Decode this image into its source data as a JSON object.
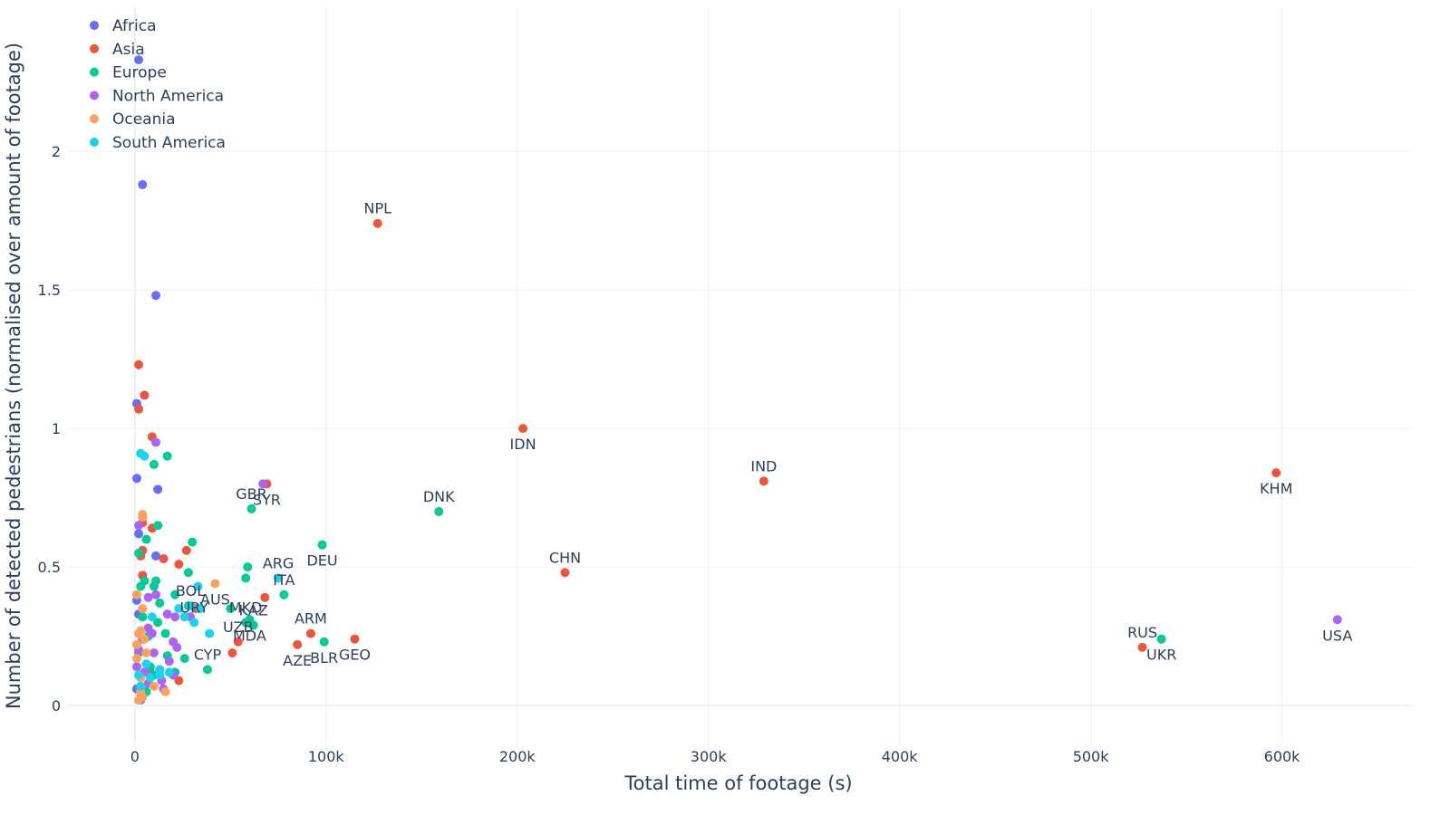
{
  "chart_data": {
    "type": "scatter",
    "title": "",
    "xlabel": "Total time of footage (s)",
    "ylabel": "Number of detected pedestrians (normalised over amount of footage)",
    "xlim": [
      -35000,
      668000
    ],
    "ylim": [
      -0.14,
      2.52
    ],
    "x_ticks": [
      {
        "v": 0,
        "label": "0"
      },
      {
        "v": 100000,
        "label": "100k"
      },
      {
        "v": 200000,
        "label": "200k"
      },
      {
        "v": 300000,
        "label": "300k"
      },
      {
        "v": 400000,
        "label": "400k"
      },
      {
        "v": 500000,
        "label": "500k"
      },
      {
        "v": 600000,
        "label": "600k"
      }
    ],
    "y_ticks": [
      {
        "v": 0,
        "label": "0"
      },
      {
        "v": 0.5,
        "label": "0.5"
      },
      {
        "v": 1,
        "label": "1"
      },
      {
        "v": 1.5,
        "label": "1.5"
      },
      {
        "v": 2,
        "label": "2"
      }
    ],
    "grid": true,
    "legend_position": "top-left",
    "series": [
      {
        "name": "Africa",
        "color": "#636efa",
        "points": [
          {
            "x": 2000,
            "y": 2.33
          },
          {
            "x": 4000,
            "y": 1.88
          },
          {
            "x": 11000,
            "y": 1.48
          },
          {
            "x": 1000,
            "y": 1.09
          },
          {
            "x": 1000,
            "y": 0.82
          },
          {
            "x": 12000,
            "y": 0.78
          },
          {
            "x": 2000,
            "y": 0.62
          },
          {
            "x": 11000,
            "y": 0.54
          },
          {
            "x": 1000,
            "y": 0.38
          },
          {
            "x": 2000,
            "y": 0.33
          },
          {
            "x": 1000,
            "y": 0.06
          },
          {
            "x": 3000,
            "y": 0.02
          }
        ]
      },
      {
        "name": "Asia",
        "color": "#ef553b",
        "points": [
          {
            "x": 127000,
            "y": 1.74,
            "label": "NPL",
            "lpos": "above"
          },
          {
            "x": 203000,
            "y": 1.0,
            "label": "IDN",
            "lpos": "below"
          },
          {
            "x": 329000,
            "y": 0.81,
            "label": "IND",
            "lpos": "above"
          },
          {
            "x": 597000,
            "y": 0.84,
            "label": "KHM",
            "lpos": "below"
          },
          {
            "x": 225000,
            "y": 0.48,
            "label": "CHN",
            "lpos": "above"
          },
          {
            "x": 527000,
            "y": 0.21,
            "label": "RUS",
            "lpos": "above"
          },
          {
            "x": 69000,
            "y": 0.8,
            "label": "SYR",
            "lpos": "below"
          },
          {
            "x": 92000,
            "y": 0.26,
            "label": "ARM",
            "lpos": "above"
          },
          {
            "x": 85000,
            "y": 0.22,
            "label": "AZE",
            "lpos": "below"
          },
          {
            "x": 115000,
            "y": 0.24,
            "label": "GEO",
            "lpos": "below"
          },
          {
            "x": 54000,
            "y": 0.23,
            "label": "UZB",
            "lpos": "above"
          },
          {
            "x": 2000,
            "y": 1.23
          },
          {
            "x": 2000,
            "y": 1.07
          },
          {
            "x": 5000,
            "y": 1.12
          },
          {
            "x": 9000,
            "y": 0.97
          },
          {
            "x": 4000,
            "y": 0.66
          },
          {
            "x": 9000,
            "y": 0.64
          },
          {
            "x": 4000,
            "y": 0.56
          },
          {
            "x": 3000,
            "y": 0.54
          },
          {
            "x": 27000,
            "y": 0.56
          },
          {
            "x": 15000,
            "y": 0.53
          },
          {
            "x": 23000,
            "y": 0.51
          },
          {
            "x": 4000,
            "y": 0.47
          },
          {
            "x": 68000,
            "y": 0.39
          },
          {
            "x": 32000,
            "y": 0.35
          },
          {
            "x": 51000,
            "y": 0.19
          },
          {
            "x": 23000,
            "y": 0.09
          },
          {
            "x": 8000,
            "y": 0.12
          }
        ]
      },
      {
        "name": "Europe",
        "color": "#00cc96",
        "points": [
          {
            "x": 159000,
            "y": 0.7,
            "label": "DNK",
            "lpos": "above"
          },
          {
            "x": 98000,
            "y": 0.58,
            "label": "DEU",
            "lpos": "below"
          },
          {
            "x": 78000,
            "y": 0.4,
            "label": "ITA",
            "lpos": "above"
          },
          {
            "x": 61000,
            "y": 0.71,
            "label": "GBR",
            "lpos": "above"
          },
          {
            "x": 537000,
            "y": 0.24,
            "label": "UKR",
            "lpos": "below"
          },
          {
            "x": 99000,
            "y": 0.23,
            "label": "BLR",
            "lpos": "below"
          },
          {
            "x": 58000,
            "y": 0.3,
            "label": "MKD",
            "lpos": "above"
          },
          {
            "x": 62000,
            "y": 0.29,
            "label": "KAZ",
            "lpos": "above"
          },
          {
            "x": 60000,
            "y": 0.31,
            "label": "MDA",
            "lpos": "below"
          },
          {
            "x": 38000,
            "y": 0.13,
            "label": "CYP",
            "lpos": "above"
          },
          {
            "x": 17000,
            "y": 0.9
          },
          {
            "x": 10000,
            "y": 0.87
          },
          {
            "x": 12000,
            "y": 0.65
          },
          {
            "x": 6000,
            "y": 0.6
          },
          {
            "x": 30000,
            "y": 0.59
          },
          {
            "x": 2000,
            "y": 0.55
          },
          {
            "x": 59000,
            "y": 0.5
          },
          {
            "x": 28000,
            "y": 0.48
          },
          {
            "x": 58000,
            "y": 0.46
          },
          {
            "x": 5000,
            "y": 0.45
          },
          {
            "x": 11000,
            "y": 0.45
          },
          {
            "x": 3000,
            "y": 0.43
          },
          {
            "x": 10000,
            "y": 0.43
          },
          {
            "x": 21000,
            "y": 0.4
          },
          {
            "x": 13000,
            "y": 0.37
          },
          {
            "x": 28000,
            "y": 0.36
          },
          {
            "x": 50000,
            "y": 0.35
          },
          {
            "x": 4000,
            "y": 0.32
          },
          {
            "x": 12000,
            "y": 0.3
          },
          {
            "x": 16000,
            "y": 0.26
          },
          {
            "x": 7000,
            "y": 0.25
          },
          {
            "x": 26000,
            "y": 0.17
          },
          {
            "x": 2000,
            "y": 0.19
          },
          {
            "x": 17000,
            "y": 0.18
          },
          {
            "x": 8000,
            "y": 0.14
          },
          {
            "x": 21000,
            "y": 0.12
          },
          {
            "x": 10000,
            "y": 0.11
          },
          {
            "x": 6000,
            "y": 0.05
          }
        ]
      },
      {
        "name": "North America",
        "color": "#ab63fa",
        "points": [
          {
            "x": 629000,
            "y": 0.31,
            "label": "USA",
            "lpos": "below"
          },
          {
            "x": 67000,
            "y": 0.8
          },
          {
            "x": 11000,
            "y": 0.95
          },
          {
            "x": 2000,
            "y": 0.65
          },
          {
            "x": 7000,
            "y": 0.39
          },
          {
            "x": 11000,
            "y": 0.4
          },
          {
            "x": 29000,
            "y": 0.32
          },
          {
            "x": 17000,
            "y": 0.33
          },
          {
            "x": 21000,
            "y": 0.32
          },
          {
            "x": 7000,
            "y": 0.28
          },
          {
            "x": 9000,
            "y": 0.26
          },
          {
            "x": 4000,
            "y": 0.24
          },
          {
            "x": 20000,
            "y": 0.23
          },
          {
            "x": 22000,
            "y": 0.21
          },
          {
            "x": 2000,
            "y": 0.2
          },
          {
            "x": 10000,
            "y": 0.19
          },
          {
            "x": 18000,
            "y": 0.16
          },
          {
            "x": 1000,
            "y": 0.14
          },
          {
            "x": 5000,
            "y": 0.12
          },
          {
            "x": 20000,
            "y": 0.11
          },
          {
            "x": 14000,
            "y": 0.09
          },
          {
            "x": 7000,
            "y": 0.08
          },
          {
            "x": 15000,
            "y": 0.06
          },
          {
            "x": 3000,
            "y": 0.03
          }
        ]
      },
      {
        "name": "Oceania",
        "color": "#ffa15a",
        "points": [
          {
            "x": 42000,
            "y": 0.44,
            "label": "AUS",
            "lpos": "below"
          },
          {
            "x": 4000,
            "y": 0.69
          },
          {
            "x": 4000,
            "y": 0.68
          },
          {
            "x": 1000,
            "y": 0.4
          },
          {
            "x": 4000,
            "y": 0.35
          },
          {
            "x": 3000,
            "y": 0.27
          },
          {
            "x": 2000,
            "y": 0.26
          },
          {
            "x": 5000,
            "y": 0.24
          },
          {
            "x": 1000,
            "y": 0.22
          },
          {
            "x": 6000,
            "y": 0.19
          },
          {
            "x": 1000,
            "y": 0.17
          },
          {
            "x": 3000,
            "y": 0.1
          },
          {
            "x": 10000,
            "y": 0.07
          },
          {
            "x": 16000,
            "y": 0.05
          },
          {
            "x": 3000,
            "y": 0.05
          },
          {
            "x": 4000,
            "y": 0.03
          },
          {
            "x": 2000,
            "y": 0.02
          }
        ]
      },
      {
        "name": "South America",
        "color": "#19d3f3",
        "points": [
          {
            "x": 75000,
            "y": 0.46,
            "label": "ARG",
            "lpos": "above"
          },
          {
            "x": 29000,
            "y": 0.36,
            "label": "BOL",
            "lpos": "above"
          },
          {
            "x": 31000,
            "y": 0.3,
            "label": "URY",
            "lpos": "above"
          },
          {
            "x": 3000,
            "y": 0.91
          },
          {
            "x": 5000,
            "y": 0.9
          },
          {
            "x": 33000,
            "y": 0.43
          },
          {
            "x": 34000,
            "y": 0.35
          },
          {
            "x": 23000,
            "y": 0.35
          },
          {
            "x": 26000,
            "y": 0.32
          },
          {
            "x": 9000,
            "y": 0.32
          },
          {
            "x": 39000,
            "y": 0.26
          },
          {
            "x": 6000,
            "y": 0.15
          },
          {
            "x": 13000,
            "y": 0.13
          },
          {
            "x": 2000,
            "y": 0.11
          },
          {
            "x": 18000,
            "y": 0.12
          },
          {
            "x": 8000,
            "y": 0.1
          },
          {
            "x": 3000,
            "y": 0.07
          },
          {
            "x": 13000,
            "y": 0.11
          }
        ]
      }
    ]
  }
}
